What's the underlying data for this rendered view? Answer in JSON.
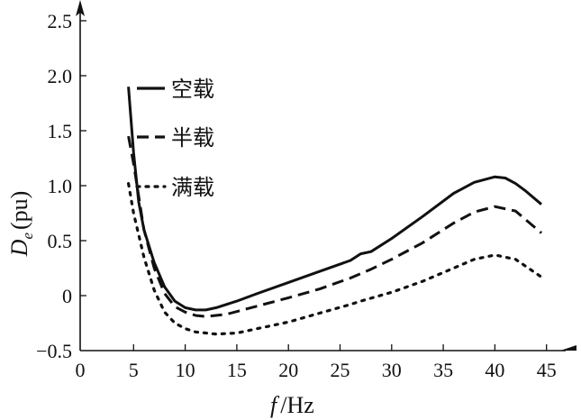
{
  "chart_data": {
    "type": "line",
    "title": "",
    "xlabel_italic": "f",
    "xlabel_unit": "/Hz",
    "ylabel_italic": "D",
    "ylabel_sub": "e",
    "ylabel_unit": "(pu)",
    "xlim": [
      0,
      45
    ],
    "ylim": [
      -0.5,
      2.5
    ],
    "xticks": [
      0,
      5,
      10,
      15,
      20,
      25,
      30,
      35,
      40,
      45
    ],
    "xtick_labels": [
      "0",
      "5",
      "10",
      "15",
      "20",
      "25",
      "30",
      "35",
      "40",
      "45"
    ],
    "yticks": [
      -0.5,
      0,
      0.5,
      1.0,
      1.5,
      2.0,
      2.5
    ],
    "ytick_labels": [
      "−0.5",
      "0",
      "0.5",
      "1.0",
      "1.5",
      "2.0",
      "2.5"
    ],
    "grid": false,
    "legend_position": "top-left",
    "series": [
      {
        "name": "空载",
        "style": "solid",
        "x": [
          4.5,
          5,
          5.5,
          6,
          7,
          8,
          9,
          10,
          11,
          12,
          13,
          15,
          17,
          20,
          23,
          26,
          27,
          28,
          30,
          33,
          36,
          38,
          40,
          41,
          42,
          43,
          44.5
        ],
        "y": [
          1.9,
          1.3,
          0.85,
          0.6,
          0.3,
          0.08,
          -0.05,
          -0.11,
          -0.13,
          -0.13,
          -0.11,
          -0.05,
          0.02,
          0.12,
          0.22,
          0.32,
          0.38,
          0.4,
          0.52,
          0.72,
          0.93,
          1.03,
          1.08,
          1.07,
          1.02,
          0.95,
          0.83
        ]
      },
      {
        "name": "半载",
        "style": "dashed",
        "x": [
          4.5,
          5,
          6,
          7,
          8,
          9,
          10,
          11,
          12,
          14,
          16,
          18,
          20,
          23,
          26,
          28,
          30,
          33,
          36,
          38,
          40,
          42,
          44.5
        ],
        "y": [
          1.45,
          1.2,
          0.6,
          0.25,
          0.02,
          -0.1,
          -0.15,
          -0.18,
          -0.19,
          -0.17,
          -0.12,
          -0.07,
          -0.02,
          0.06,
          0.16,
          0.24,
          0.33,
          0.48,
          0.66,
          0.76,
          0.81,
          0.77,
          0.57
        ]
      },
      {
        "name": "满载",
        "style": "dotted",
        "x": [
          4.5,
          5,
          6,
          7,
          8,
          9,
          10,
          11,
          13,
          15,
          17,
          20,
          23,
          26,
          27,
          30,
          33,
          36,
          38,
          40,
          42,
          44.5
        ],
        "y": [
          1.02,
          0.75,
          0.35,
          0.05,
          -0.15,
          -0.25,
          -0.3,
          -0.33,
          -0.35,
          -0.34,
          -0.3,
          -0.24,
          -0.16,
          -0.08,
          -0.05,
          0.03,
          0.13,
          0.25,
          0.33,
          0.37,
          0.33,
          0.17
        ]
      }
    ]
  }
}
